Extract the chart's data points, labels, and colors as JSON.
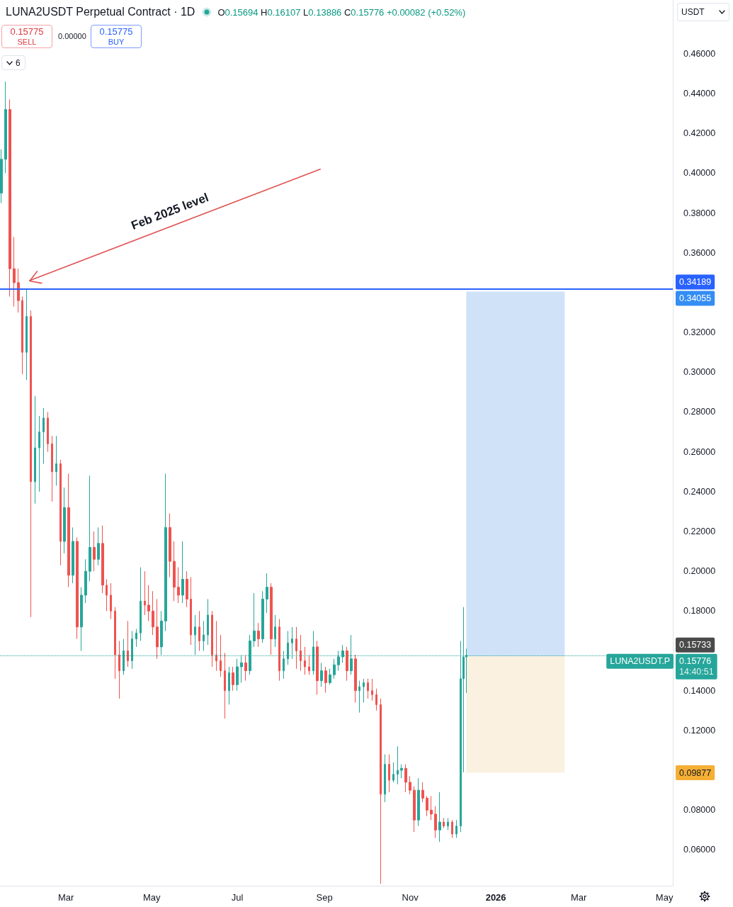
{
  "chart_data": {
    "type": "candlestick",
    "title": "LUNA2USDT Perpetual Contract · 1D",
    "annotations": [
      "O0.15694 H0.16107 L0.13886 C0.15776 +0.00082 (+0.52%)",
      "0.15775",
      "SELL",
      "0.00000",
      "0.15775",
      "BUY",
      "6",
      "USDT",
      "Feb 2025 level",
      "LUNA2USDT.P",
      "14:40:51",
      "0.34055",
      "0.15733",
      "0.09877"
    ],
    "series": [
      {
        "x": [
          "2025-01-14",
          "2025-01-17",
          "2025-01-20",
          "2025-01-23",
          "2025-01-26",
          "2025-01-29",
          "2025-02-01",
          "2025-02-04",
          "2025-02-07",
          "2025-02-10",
          "2025-02-13",
          "2025-02-16",
          "2025-02-19",
          "2025-02-22",
          "2025-02-25",
          "2025-02-28",
          "2025-03-03",
          "2025-03-06",
          "2025-03-09",
          "2025-03-12",
          "2025-03-15",
          "2025-03-18",
          "2025-03-21",
          "2025-03-24",
          "2025-03-27",
          "2025-03-30",
          "2025-04-02",
          "2025-04-05",
          "2025-04-08",
          "2025-04-11",
          "2025-04-14",
          "2025-04-17",
          "2025-04-20",
          "2025-04-23",
          "2025-04-26",
          "2025-04-29",
          "2025-05-02",
          "2025-05-05",
          "2025-05-08",
          "2025-05-11",
          "2025-05-14",
          "2025-05-17",
          "2025-05-20",
          "2025-05-23",
          "2025-05-26",
          "2025-05-29",
          "2025-06-01",
          "2025-06-04",
          "2025-06-07",
          "2025-06-10",
          "2025-06-13",
          "2025-06-16",
          "2025-06-19",
          "2025-06-22",
          "2025-06-25",
          "2025-06-28",
          "2025-07-01",
          "2025-07-04",
          "2025-07-07",
          "2025-07-10",
          "2025-07-13",
          "2025-07-16",
          "2025-07-19",
          "2025-07-22",
          "2025-07-25",
          "2025-07-28",
          "2025-07-31",
          "2025-08-03",
          "2025-08-06",
          "2025-08-09",
          "2025-08-12",
          "2025-08-15",
          "2025-08-18",
          "2025-08-21",
          "2025-08-24",
          "2025-08-27",
          "2025-08-30",
          "2025-09-02",
          "2025-09-05",
          "2025-09-08",
          "2025-09-11",
          "2025-09-14",
          "2025-09-17",
          "2025-09-20",
          "2025-09-23",
          "2025-09-26",
          "2025-09-29",
          "2025-10-02",
          "2025-10-05",
          "2025-10-08",
          "2025-10-11",
          "2025-10-14",
          "2025-10-17",
          "2025-10-20",
          "2025-10-23",
          "2025-10-26",
          "2025-10-29",
          "2025-11-01",
          "2025-11-04",
          "2025-11-07",
          "2025-11-10",
          "2025-11-13",
          "2025-11-16",
          "2025-11-19",
          "2025-11-22",
          "2025-11-25",
          "2025-11-28",
          "2025-12-01",
          "2025-12-04",
          "2025-12-07",
          "2025-12-09",
          "2025-12-11"
        ],
        "ohlc": [
          [
            0.39,
            0.412,
            0.385,
            0.407
          ],
          [
            0.407,
            0.446,
            0.4,
            0.432
          ],
          [
            0.432,
            0.437,
            0.338,
            0.352
          ],
          [
            0.352,
            0.368,
            0.333,
            0.345
          ],
          [
            0.345,
            0.352,
            0.33,
            0.336
          ],
          [
            0.336,
            0.338,
            0.299,
            0.31
          ],
          [
            0.31,
            0.342,
            0.296,
            0.328
          ],
          [
            0.328,
            0.331,
            0.177,
            0.245
          ],
          [
            0.245,
            0.288,
            0.234,
            0.262
          ],
          [
            0.262,
            0.278,
            0.24,
            0.27
          ],
          [
            0.27,
            0.282,
            0.254,
            0.277
          ],
          [
            0.277,
            0.28,
            0.26,
            0.264
          ],
          [
            0.264,
            0.268,
            0.235,
            0.25
          ],
          [
            0.25,
            0.268,
            0.243,
            0.254
          ],
          [
            0.254,
            0.256,
            0.203,
            0.215
          ],
          [
            0.215,
            0.242,
            0.209,
            0.232
          ],
          [
            0.232,
            0.249,
            0.192,
            0.198
          ],
          [
            0.198,
            0.222,
            0.194,
            0.215
          ],
          [
            0.215,
            0.217,
            0.166,
            0.172
          ],
          [
            0.172,
            0.192,
            0.16,
            0.188
          ],
          [
            0.188,
            0.206,
            0.184,
            0.2
          ],
          [
            0.2,
            0.248,
            0.195,
            0.212
          ],
          [
            0.212,
            0.22,
            0.2,
            0.206
          ],
          [
            0.206,
            0.222,
            0.203,
            0.214
          ],
          [
            0.214,
            0.223,
            0.189,
            0.193
          ],
          [
            0.193,
            0.196,
            0.18,
            0.188
          ],
          [
            0.188,
            0.194,
            0.176,
            0.18
          ],
          [
            0.18,
            0.182,
            0.146,
            0.158
          ],
          [
            0.158,
            0.165,
            0.136,
            0.15
          ],
          [
            0.15,
            0.166,
            0.148,
            0.16
          ],
          [
            0.16,
            0.175,
            0.152,
            0.155
          ],
          [
            0.155,
            0.17,
            0.151,
            0.166
          ],
          [
            0.166,
            0.171,
            0.162,
            0.169
          ],
          [
            0.169,
            0.202,
            0.165,
            0.185
          ],
          [
            0.185,
            0.2,
            0.178,
            0.183
          ],
          [
            0.183,
            0.193,
            0.175,
            0.18
          ],
          [
            0.18,
            0.19,
            0.168,
            0.172
          ],
          [
            0.172,
            0.186,
            0.156,
            0.162
          ],
          [
            0.162,
            0.18,
            0.158,
            0.175
          ],
          [
            0.175,
            0.249,
            0.17,
            0.222
          ],
          [
            0.222,
            0.229,
            0.197,
            0.205
          ],
          [
            0.205,
            0.215,
            0.185,
            0.192
          ],
          [
            0.192,
            0.202,
            0.184,
            0.188
          ],
          [
            0.188,
            0.215,
            0.184,
            0.196
          ],
          [
            0.196,
            0.2,
            0.182,
            0.186
          ],
          [
            0.186,
            0.197,
            0.163,
            0.168
          ],
          [
            0.168,
            0.178,
            0.158,
            0.172
          ],
          [
            0.172,
            0.18,
            0.16,
            0.165
          ],
          [
            0.165,
            0.175,
            0.16,
            0.168
          ],
          [
            0.168,
            0.186,
            0.163,
            0.178
          ],
          [
            0.178,
            0.18,
            0.152,
            0.158
          ],
          [
            0.158,
            0.175,
            0.15,
            0.155
          ],
          [
            0.155,
            0.168,
            0.147,
            0.15
          ],
          [
            0.15,
            0.159,
            0.126,
            0.14
          ],
          [
            0.14,
            0.152,
            0.133,
            0.149
          ],
          [
            0.149,
            0.152,
            0.14,
            0.143
          ],
          [
            0.143,
            0.156,
            0.14,
            0.152
          ],
          [
            0.152,
            0.158,
            0.144,
            0.154
          ],
          [
            0.154,
            0.158,
            0.145,
            0.15
          ],
          [
            0.15,
            0.168,
            0.148,
            0.165
          ],
          [
            0.165,
            0.189,
            0.162,
            0.17
          ],
          [
            0.17,
            0.174,
            0.162,
            0.166
          ],
          [
            0.166,
            0.19,
            0.164,
            0.186
          ],
          [
            0.186,
            0.199,
            0.179,
            0.192
          ],
          [
            0.192,
            0.194,
            0.158,
            0.166
          ],
          [
            0.166,
            0.178,
            0.162,
            0.172
          ],
          [
            0.172,
            0.176,
            0.145,
            0.15
          ],
          [
            0.15,
            0.16,
            0.146,
            0.156
          ],
          [
            0.156,
            0.17,
            0.153,
            0.164
          ],
          [
            0.164,
            0.172,
            0.156,
            0.166
          ],
          [
            0.166,
            0.172,
            0.151,
            0.16
          ],
          [
            0.16,
            0.168,
            0.15,
            0.155
          ],
          [
            0.155,
            0.162,
            0.148,
            0.152
          ],
          [
            0.152,
            0.158,
            0.148,
            0.15
          ],
          [
            0.15,
            0.17,
            0.148,
            0.162
          ],
          [
            0.162,
            0.165,
            0.138,
            0.145
          ],
          [
            0.145,
            0.154,
            0.142,
            0.15
          ],
          [
            0.15,
            0.152,
            0.139,
            0.144
          ],
          [
            0.144,
            0.151,
            0.143,
            0.148
          ],
          [
            0.148,
            0.156,
            0.146,
            0.153
          ],
          [
            0.153,
            0.16,
            0.15,
            0.157
          ],
          [
            0.157,
            0.163,
            0.154,
            0.16
          ],
          [
            0.16,
            0.162,
            0.145,
            0.15
          ],
          [
            0.15,
            0.168,
            0.148,
            0.156
          ],
          [
            0.156,
            0.158,
            0.134,
            0.14
          ],
          [
            0.14,
            0.145,
            0.129,
            0.142
          ],
          [
            0.142,
            0.146,
            0.134,
            0.144
          ],
          [
            0.144,
            0.146,
            0.136,
            0.14
          ],
          [
            0.14,
            0.146,
            0.135,
            0.138
          ],
          [
            0.138,
            0.141,
            0.13,
            0.133
          ],
          [
            0.133,
            0.136,
            0.043,
            0.088
          ],
          [
            0.088,
            0.108,
            0.084,
            0.103
          ],
          [
            0.103,
            0.108,
            0.089,
            0.095
          ],
          [
            0.095,
            0.104,
            0.094,
            0.098
          ],
          [
            0.098,
            0.112,
            0.093,
            0.1
          ],
          [
            0.1,
            0.103,
            0.096,
            0.101
          ],
          [
            0.101,
            0.103,
            0.089,
            0.094
          ],
          [
            0.094,
            0.097,
            0.088,
            0.09
          ],
          [
            0.09,
            0.092,
            0.069,
            0.075
          ],
          [
            0.075,
            0.096,
            0.072,
            0.09
          ],
          [
            0.09,
            0.094,
            0.084,
            0.086
          ],
          [
            0.086,
            0.087,
            0.077,
            0.08
          ],
          [
            0.08,
            0.087,
            0.075,
            0.078
          ],
          [
            0.078,
            0.082,
            0.066,
            0.07
          ],
          [
            0.07,
            0.089,
            0.064,
            0.074
          ],
          [
            0.074,
            0.076,
            0.071,
            0.072
          ],
          [
            0.072,
            0.076,
            0.07,
            0.074
          ],
          [
            0.074,
            0.075,
            0.066,
            0.068
          ],
          [
            0.068,
            0.075,
            0.066,
            0.072
          ],
          [
            0.072,
            0.165,
            0.069,
            0.146
          ],
          [
            0.146,
            0.182,
            0.099,
            0.157
          ],
          [
            0.15694,
            0.16107,
            0.13886,
            0.15776
          ]
        ],
        "colors": [
          "#26a69a",
          "#26a69a",
          "#ef5350",
          "#ef5350",
          "#ef5350",
          "#ef5350",
          "#26a69a",
          "#ef5350",
          "#26a69a",
          "#26a69a",
          "#26a69a",
          "#ef5350",
          "#ef5350",
          "#26a69a",
          "#ef5350",
          "#26a69a",
          "#ef5350",
          "#26a69a",
          "#ef5350",
          "#26a69a",
          "#26a69a",
          "#26a69a",
          "#ef5350",
          "#26a69a",
          "#ef5350",
          "#ef5350",
          "#ef5350",
          "#ef5350",
          "#ef5350",
          "#26a69a",
          "#ef5350",
          "#26a69a",
          "#26a69a",
          "#26a69a",
          "#ef5350",
          "#ef5350",
          "#ef5350",
          "#ef5350",
          "#26a69a",
          "#26a69a",
          "#ef5350",
          "#ef5350",
          "#ef5350",
          "#26a69a",
          "#ef5350",
          "#ef5350",
          "#26a69a",
          "#ef5350",
          "#26a69a",
          "#26a69a",
          "#ef5350",
          "#ef5350",
          "#ef5350",
          "#ef5350",
          "#26a69a",
          "#ef5350",
          "#26a69a",
          "#26a69a",
          "#ef5350",
          "#26a69a",
          "#26a69a",
          "#ef5350",
          "#26a69a",
          "#26a69a",
          "#ef5350",
          "#26a69a",
          "#ef5350",
          "#26a69a",
          "#26a69a",
          "#26a69a",
          "#ef5350",
          "#ef5350",
          "#ef5350",
          "#ef5350",
          "#26a69a",
          "#ef5350",
          "#26a69a",
          "#ef5350",
          "#26a69a",
          "#26a69a",
          "#26a69a",
          "#26a69a",
          "#ef5350",
          "#26a69a",
          "#ef5350",
          "#26a69a",
          "#26a69a",
          "#ef5350",
          "#ef5350",
          "#ef5350",
          "#ef5350",
          "#26a69a",
          "#ef5350",
          "#26a69a",
          "#26a69a",
          "#26a69a",
          "#ef5350",
          "#ef5350",
          "#ef5350",
          "#26a69a",
          "#ef5350",
          "#ef5350",
          "#ef5350",
          "#ef5350",
          "#26a69a",
          "#ef5350",
          "#26a69a",
          "#ef5350",
          "#26a69a",
          "#26a69a",
          "#26a69a",
          "#26a69a"
        ]
      },
      {
        "type": "bar",
        "x": [
          "2026-01-15"
        ],
        "base": [
          0.15733
        ],
        "values": [
          0.18322
        ],
        "color": "#cfe2f8"
      },
      {
        "type": "bar",
        "x": [
          "2026-01-15"
        ],
        "base": [
          0.09877
        ],
        "values": [
          0.05856
        ],
        "color": "#faf1e1"
      },
      {
        "type": "line",
        "x": [
          "2025-02-03",
          "2025-08-29"
        ],
        "values": [
          0.346,
          0.402
        ],
        "color": "#e05252"
      }
    ],
    "xlim": [
      "2025-01-13",
      "2026-05-07"
    ],
    "xticks": [
      {
        "value": "2025-03-01",
        "label": "Mar"
      },
      {
        "value": "2025-05-01",
        "label": "May"
      },
      {
        "value": "2025-07-01",
        "label": "Jul"
      },
      {
        "value": "2025-09-01",
        "label": "Sep"
      },
      {
        "value": "2025-11-01",
        "label": "Nov"
      },
      {
        "value": "2026-01-01",
        "label": "2026"
      },
      {
        "value": "2026-03-01",
        "label": "Mar"
      },
      {
        "value": "2026-05-01",
        "label": "May"
      }
    ],
    "ylim": [
      0.042,
      0.487
    ],
    "yticks": [
      {
        "value": 0.06,
        "label": "0.06000"
      },
      {
        "value": 0.08,
        "label": "0.08000"
      },
      {
        "value": 0.12,
        "label": "0.12000"
      },
      {
        "value": 0.14,
        "label": "0.14000"
      },
      {
        "value": 0.18,
        "label": "0.18000"
      },
      {
        "value": 0.2,
        "label": "0.20000"
      },
      {
        "value": 0.22,
        "label": "0.22000"
      },
      {
        "value": 0.24,
        "label": "0.24000"
      },
      {
        "value": 0.26,
        "label": "0.26000"
      },
      {
        "value": 0.28,
        "label": "0.28000"
      },
      {
        "value": 0.3,
        "label": "0.30000"
      },
      {
        "value": 0.32,
        "label": "0.32000"
      },
      {
        "value": 0.36,
        "label": "0.36000"
      },
      {
        "value": 0.38,
        "label": "0.38000"
      },
      {
        "value": 0.4,
        "label": "0.40000"
      },
      {
        "value": 0.42,
        "label": "0.42000"
      },
      {
        "value": 0.44,
        "label": "0.44000"
      },
      {
        "value": 0.46,
        "label": "0.46000"
      }
    ],
    "ref_lines": [
      {
        "axis": "y",
        "value": 0.34189,
        "label": "0.34189",
        "color": "#2962ff",
        "line_style": "solid"
      },
      {
        "axis": "y",
        "value": 0.15776,
        "label": "0.15776",
        "color": "#26a69a",
        "line_style": "dotted"
      }
    ]
  }
}
